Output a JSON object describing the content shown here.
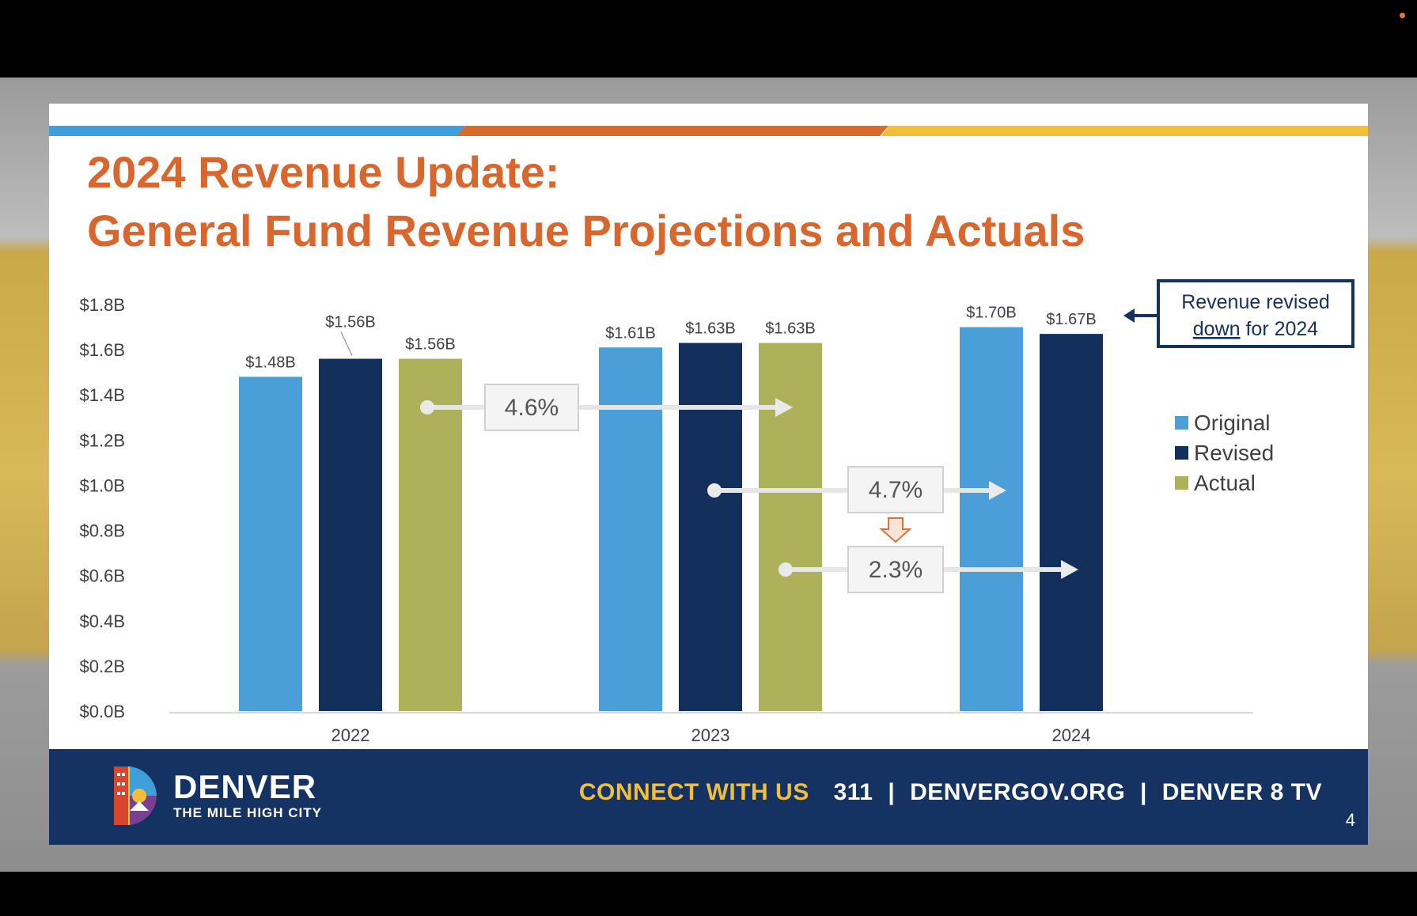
{
  "slide": {
    "title_line1": "2024 Revenue Update:",
    "title_line2": "General Fund Revenue Projections and Actuals",
    "page_number": "4"
  },
  "footer": {
    "brand_name": "DENVER",
    "brand_tagline": "THE MILE HIGH CITY",
    "connect_label": "CONNECT WITH US",
    "contact_items": [
      "311",
      "DENVERGOV.ORG",
      "DENVER 8 TV"
    ],
    "separator": "|"
  },
  "chart_data": {
    "type": "bar",
    "categories": [
      "2022",
      "2023",
      "2024"
    ],
    "series": [
      {
        "name": "Original",
        "color": "#4a9fd8",
        "values": [
          1.48,
          1.61,
          1.7
        ],
        "labels": [
          "$1.48B",
          "$1.61B",
          "$1.70B"
        ]
      },
      {
        "name": "Revised",
        "color": "#13305c",
        "values": [
          1.56,
          1.63,
          1.67
        ],
        "labels": [
          "$1.56B",
          "$1.63B",
          "$1.67B"
        ]
      },
      {
        "name": "Actual",
        "color": "#adb15a",
        "values": [
          1.56,
          1.63,
          null
        ],
        "labels": [
          "$1.56B",
          "$1.63B",
          ""
        ]
      }
    ],
    "ylim": [
      0,
      1.8
    ],
    "yticks": [
      "$0.0B",
      "$0.2B",
      "$0.4B",
      "$0.6B",
      "$0.8B",
      "$1.0B",
      "$1.2B",
      "$1.4B",
      "$1.6B",
      "$1.8B"
    ],
    "legend_position": "right",
    "growth_annotations": [
      "4.6%",
      "4.7%",
      "2.3%"
    ],
    "callout": {
      "line1": "Revenue revised",
      "underlined": "down",
      "rest": "for 2024"
    }
  },
  "colors": {
    "title": "#d8662d",
    "footer_bg": "#143262",
    "accent_yellow": "#f3bf3a"
  }
}
